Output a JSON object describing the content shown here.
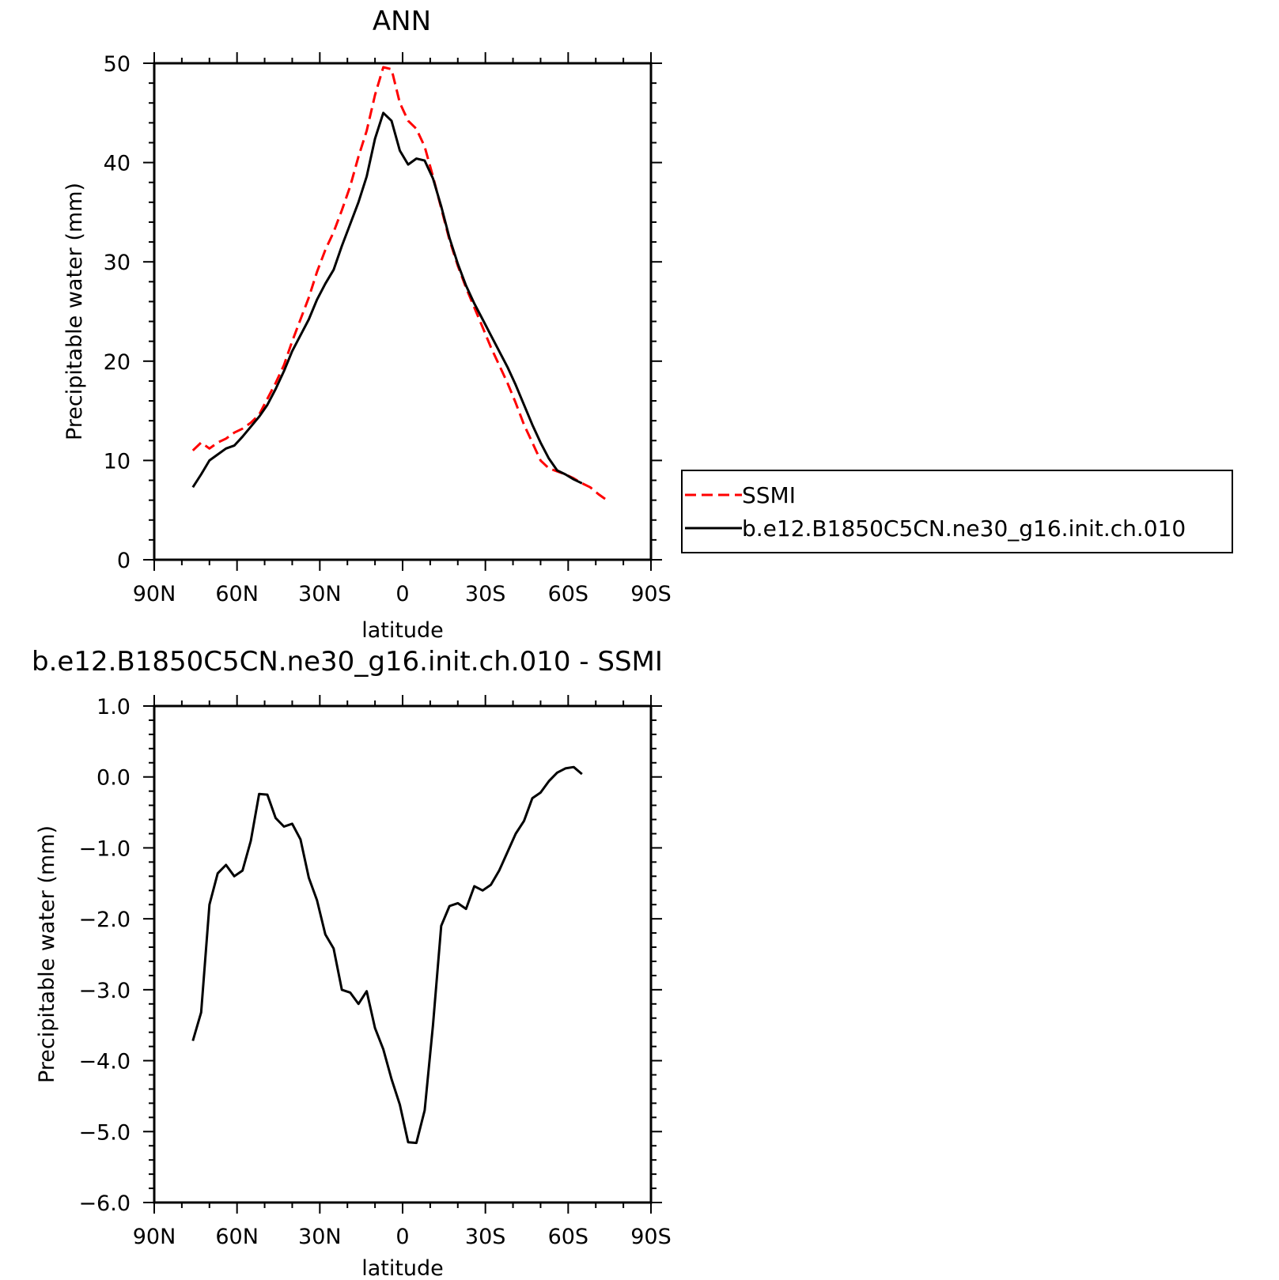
{
  "chart_data": [
    {
      "type": "line",
      "title": "ANN",
      "xlabel": "latitude",
      "ylabel": "Precipitable water (mm)",
      "xlim": [
        90,
        -90
      ],
      "ylim": [
        0,
        50
      ],
      "x_ticks": [
        90,
        60,
        30,
        0,
        -30,
        -60,
        -90
      ],
      "x_tick_labels": [
        "90N",
        "60N",
        "30N",
        "0",
        "30S",
        "60S",
        "90S"
      ],
      "y_ticks": [
        0,
        10,
        20,
        30,
        40,
        50
      ],
      "y_tick_labels": [
        "0",
        "10",
        "20",
        "30",
        "40",
        "50"
      ],
      "legend": "right",
      "series": [
        {
          "name": "SSMI",
          "color": "#ff0000",
          "dash": true,
          "x": [
            76,
            73,
            70,
            67,
            64,
            61,
            58,
            55,
            52,
            49,
            46,
            43,
            40,
            37,
            34,
            31,
            28,
            25,
            22,
            19,
            16,
            13,
            10,
            7,
            4,
            1,
            -2,
            -5,
            -8,
            -11,
            -14,
            -17,
            -20,
            -23,
            -26,
            -29,
            -32,
            -35,
            -38,
            -41,
            -44,
            -47,
            -50,
            -53,
            -56,
            -59,
            -62,
            -65,
            -68,
            -71,
            -74
          ],
          "y": [
            11.0,
            11.8,
            11.2,
            11.8,
            12.2,
            12.8,
            13.2,
            13.8,
            14.6,
            16.2,
            17.8,
            19.6,
            22.0,
            24.2,
            26.4,
            29.0,
            31.2,
            33.0,
            35.2,
            37.6,
            40.6,
            43.2,
            46.8,
            49.6,
            49.4,
            46.0,
            44.2,
            43.4,
            41.6,
            38.6,
            35.4,
            32.2,
            29.6,
            27.4,
            25.4,
            23.4,
            21.4,
            19.6,
            17.8,
            15.8,
            13.6,
            11.8,
            10.0,
            9.2,
            8.9,
            8.6,
            8.2,
            7.7,
            7.3,
            6.6,
            6.0
          ]
        },
        {
          "name": "b.e12.B1850C5CN.ne30_g16.init.ch.010",
          "color": "#000000",
          "dash": false,
          "x": [
            76,
            73,
            70,
            67,
            64,
            61,
            58,
            55,
            52,
            49,
            46,
            43,
            40,
            37,
            34,
            31,
            28,
            25,
            22,
            19,
            16,
            13,
            10,
            7,
            4,
            1,
            -2,
            -5,
            -8,
            -11,
            -14,
            -17,
            -20,
            -23,
            -26,
            -29,
            -32,
            -35,
            -38,
            -41,
            -44,
            -47,
            -50,
            -53,
            -56,
            -59,
            -62,
            -65
          ],
          "y": [
            7.3,
            8.6,
            10.0,
            10.6,
            11.2,
            11.5,
            12.4,
            13.4,
            14.4,
            15.6,
            17.2,
            19.0,
            21.0,
            22.6,
            24.2,
            26.2,
            27.8,
            29.2,
            31.6,
            33.8,
            36.0,
            38.6,
            42.4,
            45.0,
            44.2,
            41.2,
            39.8,
            40.4,
            40.2,
            38.4,
            35.6,
            32.4,
            29.8,
            27.6,
            25.8,
            24.2,
            22.6,
            21.0,
            19.4,
            17.6,
            15.6,
            13.6,
            11.8,
            10.2,
            9.0,
            8.6,
            8.1,
            7.7
          ]
        }
      ]
    },
    {
      "type": "line",
      "title": "b.e12.B1850C5CN.ne30_g16.init.ch.010 - SSMI",
      "xlabel": "latitude",
      "ylabel": "Precipitable water (mm)",
      "xlim": [
        90,
        -90
      ],
      "ylim": [
        -6,
        1
      ],
      "x_ticks": [
        90,
        60,
        30,
        0,
        -30,
        -60,
        -90
      ],
      "x_tick_labels": [
        "90N",
        "60N",
        "30N",
        "0",
        "30S",
        "60S",
        "90S"
      ],
      "y_ticks": [
        1,
        0,
        -1,
        -2,
        -3,
        -4,
        -5,
        -6
      ],
      "y_tick_labels": [
        "1.0",
        "0.0",
        "−1.0",
        "−2.0",
        "−3.0",
        "−4.0",
        "−5.0",
        "−6.0"
      ],
      "series": [
        {
          "color": "#000000",
          "dash": false,
          "x": [
            76,
            73,
            70,
            67,
            64,
            61,
            58,
            55,
            52,
            49,
            46,
            43,
            40,
            37,
            34,
            31,
            28,
            25,
            22,
            19,
            16,
            13,
            10,
            7,
            4,
            1,
            -2,
            -5,
            -8,
            -11,
            -14,
            -17,
            -20,
            -23,
            -26,
            -29,
            -32,
            -35,
            -38,
            -41,
            -44,
            -47,
            -50,
            -53,
            -56,
            -59,
            -62,
            -65
          ],
          "y": [
            -3.72,
            -3.32,
            -1.8,
            -1.36,
            -1.24,
            -1.4,
            -1.32,
            -0.9,
            -0.24,
            -0.25,
            -0.58,
            -0.7,
            -0.66,
            -0.88,
            -1.42,
            -1.74,
            -2.22,
            -2.42,
            -3.0,
            -3.04,
            -3.2,
            -3.02,
            -3.54,
            -3.84,
            -4.26,
            -4.62,
            -5.15,
            -5.16,
            -4.7,
            -3.5,
            -2.1,
            -1.82,
            -1.78,
            -1.86,
            -1.54,
            -1.6,
            -1.52,
            -1.32,
            -1.06,
            -0.8,
            -0.62,
            -0.3,
            -0.22,
            -0.06,
            0.06,
            0.12,
            0.14,
            0.04
          ]
        }
      ]
    }
  ]
}
